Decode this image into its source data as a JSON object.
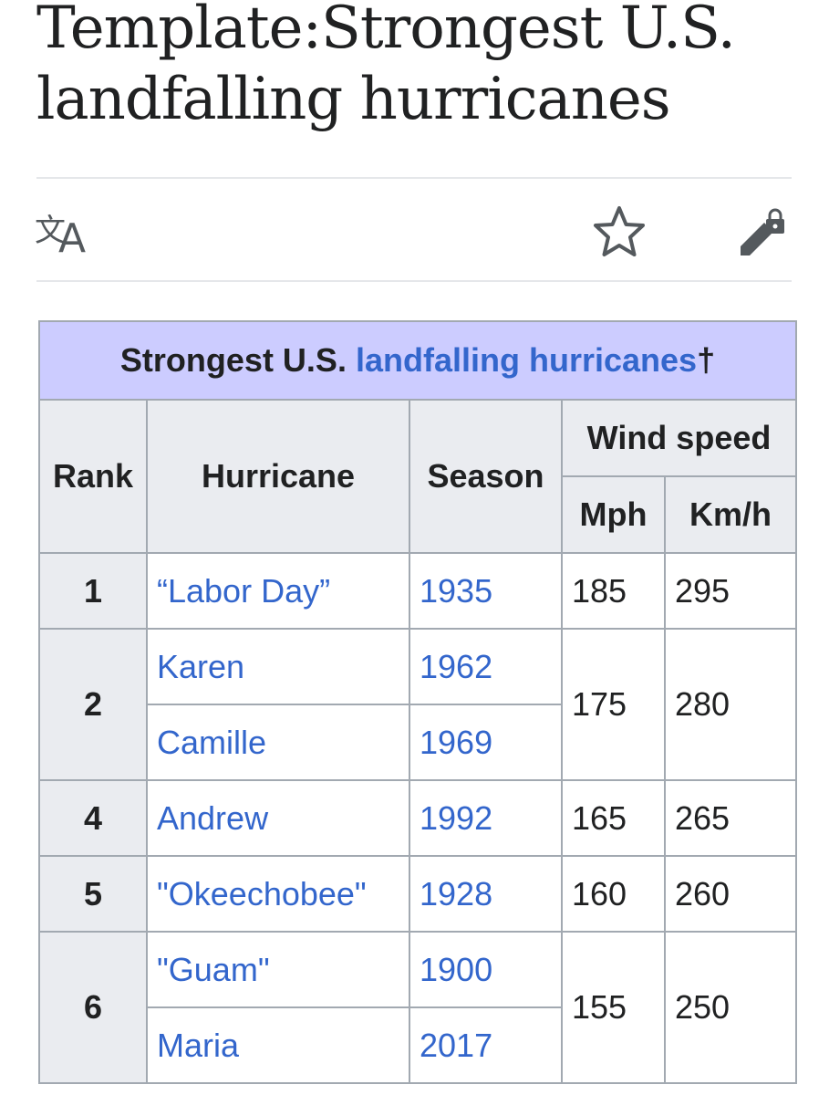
{
  "page": {
    "title": "Template:Strongest U.S. landfalling hurricanes"
  },
  "toolbar": {
    "language_icon": "translate-icon",
    "watch_icon": "star-icon",
    "edit_icon": "edit-locked-icon"
  },
  "table": {
    "caption_prefix": "Strongest U.S.",
    "caption_link": "landfalling hurricanes",
    "caption_suffix": "†",
    "headers": {
      "rank": "Rank",
      "hurricane": "Hurricane",
      "season": "Season",
      "wind_speed": "Wind speed",
      "mph": "Mph",
      "kmh": "Km/h"
    },
    "groups": [
      {
        "rank": "1",
        "mph": "185",
        "kmh": "295",
        "storms": [
          {
            "name": "“Labor Day”",
            "season": "1935"
          }
        ]
      },
      {
        "rank": "2",
        "mph": "175",
        "kmh": "280",
        "storms": [
          {
            "name": "Karen",
            "season": "1962"
          },
          {
            "name": "Camille",
            "season": "1969"
          }
        ]
      },
      {
        "rank": "4",
        "mph": "165",
        "kmh": "265",
        "storms": [
          {
            "name": "Andrew",
            "season": "1992"
          }
        ]
      },
      {
        "rank": "5",
        "mph": "160",
        "kmh": "260",
        "storms": [
          {
            "name": "\"Okeechobee\"",
            "season": "1928"
          }
        ]
      },
      {
        "rank": "6",
        "mph": "155",
        "kmh": "250",
        "storms": [
          {
            "name": "\"Guam\"",
            "season": "1900"
          },
          {
            "name": "Maria",
            "season": "2017"
          }
        ]
      }
    ]
  },
  "colors": {
    "link": "#3366cc",
    "caption_bg": "#ccccff",
    "header_bg": "#eaecf0",
    "border": "#a2a9b1",
    "text": "#202122"
  }
}
